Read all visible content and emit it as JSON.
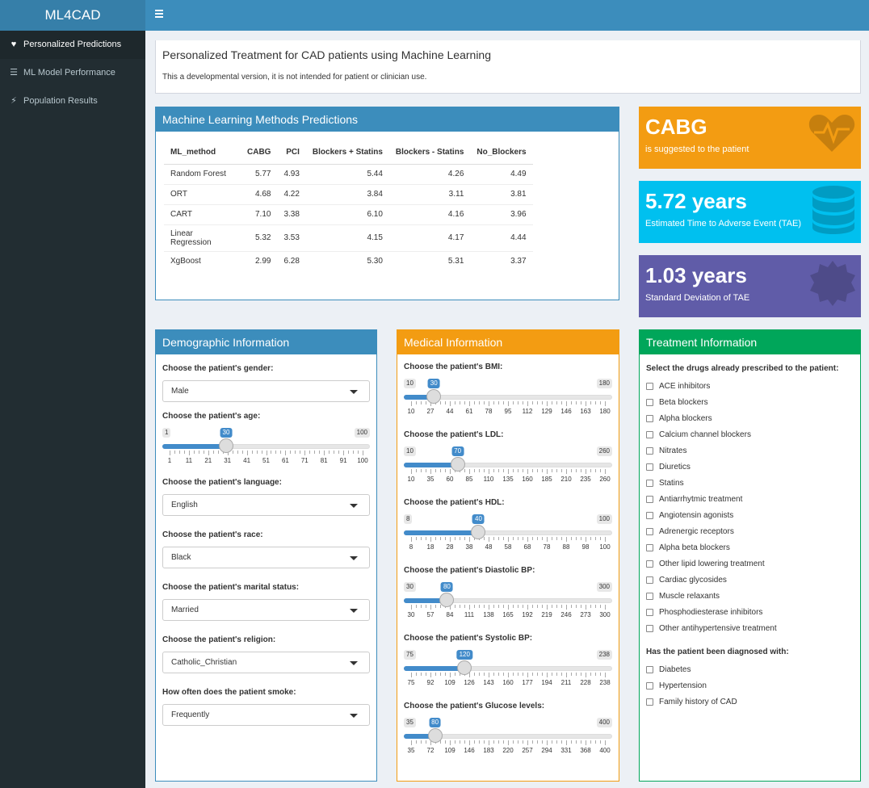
{
  "app": {
    "title": "ML4CAD"
  },
  "sidebar": {
    "items": [
      {
        "label": "Personalized Predictions",
        "icon": "heart-icon"
      },
      {
        "label": "ML Model Performance",
        "icon": "list-icon"
      },
      {
        "label": "Population Results",
        "icon": "bolt-icon"
      }
    ]
  },
  "note": {
    "title": "Personalized Treatment for CAD patients using Machine Learning",
    "subtitle": "This a developmental version, it is not intended for patient or clinician use."
  },
  "ml": {
    "title": "Machine Learning Methods Predictions",
    "columns": [
      "ML_method",
      "CABG",
      "PCI",
      "Blockers + Statins",
      "Blockers - Statins",
      "No_Blockers"
    ],
    "rows": [
      [
        "Random Forest",
        "5.77",
        "4.93",
        "5.44",
        "4.26",
        "4.49"
      ],
      [
        "ORT",
        "4.68",
        "4.22",
        "3.84",
        "3.11",
        "3.81"
      ],
      [
        "CART",
        "7.10",
        "3.38",
        "6.10",
        "4.16",
        "3.96"
      ],
      [
        "Linear Regression",
        "5.32",
        "3.53",
        "4.15",
        "4.17",
        "4.44"
      ],
      [
        "XgBoost",
        "2.99",
        "6.28",
        "5.30",
        "5.31",
        "3.37"
      ]
    ]
  },
  "valueboxes": [
    {
      "big": "CABG",
      "small": "is suggested to the patient",
      "color": "#f39c12",
      "icon": "heartbeat-icon"
    },
    {
      "big": "5.72 years",
      "small": "Estimated Time to Adverse Event (TAE)",
      "color": "#00c0ef",
      "icon": "database-icon"
    },
    {
      "big": "1.03 years",
      "small": "Standard Deviation of TAE",
      "color": "#605ca8",
      "icon": "badge-icon"
    }
  ],
  "demographic": {
    "title": "Demographic Information",
    "gender_label": "Choose the patient's gender:",
    "gender_value": "Male",
    "age_label": "Choose the patient's age:",
    "age_slider": {
      "min": 1,
      "max": 100,
      "value": 30,
      "ticks": [
        "1",
        "11",
        "21",
        "31",
        "41",
        "51",
        "61",
        "71",
        "81",
        "91",
        "100"
      ]
    },
    "language_label": "Choose the patient's language:",
    "language_value": "English",
    "race_label": "Choose the patient's race:",
    "race_value": "Black",
    "marital_label": "Choose the patient's marital status:",
    "marital_value": "Married",
    "religion_label": "Choose the patient's religion:",
    "religion_value": "Catholic_Christian",
    "smoke_label": "How often does the patient smoke:",
    "smoke_value": "Frequently"
  },
  "medical": {
    "title": "Medical Information",
    "sliders": [
      {
        "label": "Choose the patient's BMI:",
        "min": 10,
        "max": 180,
        "value": 30,
        "ticks": [
          "10",
          "27",
          "44",
          "61",
          "78",
          "95",
          "112",
          "129",
          "146",
          "163",
          "180"
        ]
      },
      {
        "label": "Choose the patient's LDL:",
        "min": 10,
        "max": 260,
        "value": 70,
        "ticks": [
          "10",
          "35",
          "60",
          "85",
          "110",
          "135",
          "160",
          "185",
          "210",
          "235",
          "260"
        ]
      },
      {
        "label": "Choose the patient's HDL:",
        "min": 8,
        "max": 100,
        "value": 40,
        "ticks": [
          "8",
          "18",
          "28",
          "38",
          "48",
          "58",
          "68",
          "78",
          "88",
          "98",
          "100"
        ]
      },
      {
        "label": "Choose the patient's Diastolic BP:",
        "min": 30,
        "max": 300,
        "value": 80,
        "ticks": [
          "30",
          "57",
          "84",
          "111",
          "138",
          "165",
          "192",
          "219",
          "246",
          "273",
          "300"
        ]
      },
      {
        "label": "Choose the patient's Systolic BP:",
        "min": 75,
        "max": 238,
        "value": 120,
        "ticks": [
          "75",
          "92",
          "109",
          "126",
          "143",
          "160",
          "177",
          "194",
          "211",
          "228",
          "238"
        ]
      },
      {
        "label": "Choose the patient's Glucose levels:",
        "min": 35,
        "max": 400,
        "value": 80,
        "ticks": [
          "35",
          "72",
          "109",
          "146",
          "183",
          "220",
          "257",
          "294",
          "331",
          "368",
          "400"
        ]
      }
    ]
  },
  "treatment": {
    "title": "Treatment Information",
    "drugs_label": "Select the drugs already prescribed to the patient:",
    "drugs": [
      "ACE inhibitors",
      "Beta blockers",
      "Alpha blockers",
      "Calcium channel blockers",
      "Nitrates",
      "Diuretics",
      "Statins",
      "Antiarrhytmic treatment",
      "Angiotensin agonists",
      "Adrenergic receptors",
      "Alpha beta blockers",
      "Other lipid lowering treatment",
      "Cardiac glycosides",
      "Muscle relaxants",
      "Phosphodiesterase inhibitors",
      "Other antihypertensive treatment"
    ],
    "diag_label": "Has the patient been diagnosed with:",
    "diagnoses": [
      "Diabetes",
      "Hypertension",
      "Family history of CAD"
    ]
  }
}
